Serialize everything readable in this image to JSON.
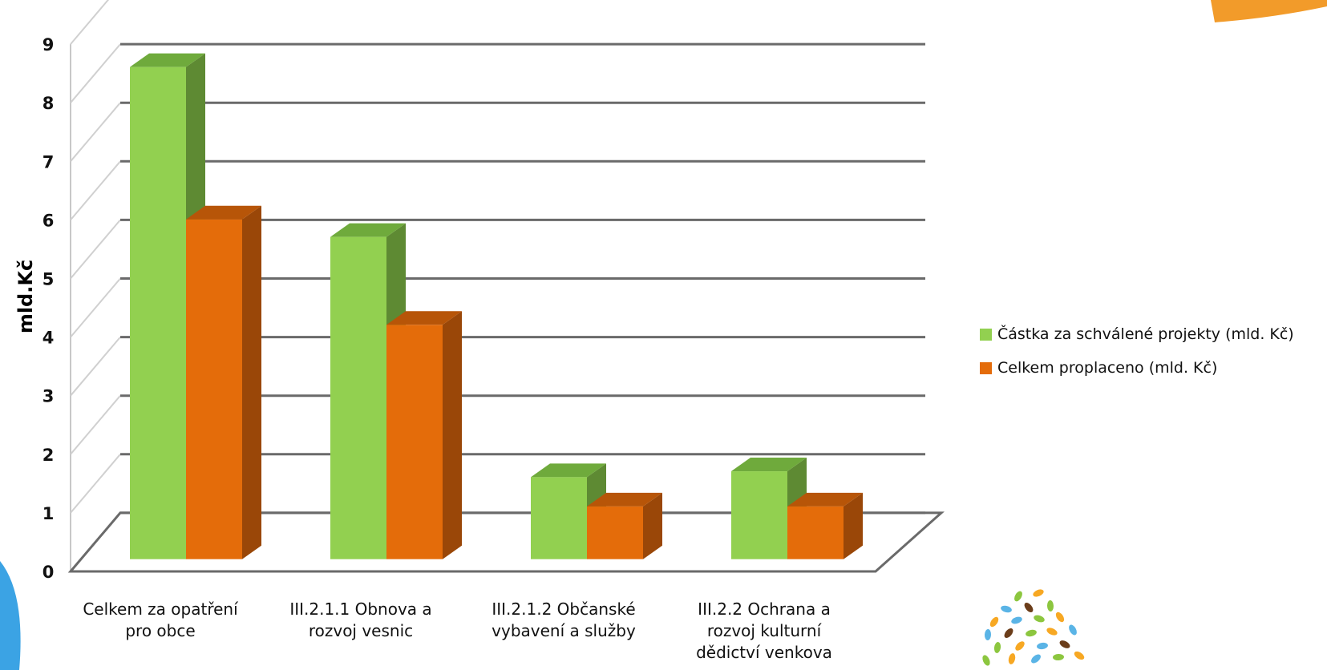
{
  "chart_data": {
    "type": "bar",
    "categories": [
      [
        "Celkem za opatření",
        "pro obce"
      ],
      [
        "III.2.1.1 Obnova a",
        "rozvoj vesnic"
      ],
      [
        "III.2.1.2  Občanské",
        "vybavení a služby"
      ],
      [
        "III.2.2 Ochrana a",
        "rozvoj kulturní",
        "dědictví venkova"
      ]
    ],
    "series": [
      {
        "name": "Částka za schválené projekty  (mld. Kč)",
        "values": [
          8.4,
          5.5,
          1.4,
          1.5
        ],
        "color": "#92d050"
      },
      {
        "name": "Celkem proplaceno (mld. Kč)",
        "values": [
          5.8,
          4.0,
          0.9,
          0.9
        ],
        "color": "#e46c0a"
      }
    ],
    "ylabel": "mld.Kč",
    "xlabel": "",
    "title": "",
    "ylim": [
      0,
      9
    ],
    "yticks": [
      "0",
      "1",
      "2",
      "3",
      "4",
      "5",
      "6",
      "7",
      "8",
      "9"
    ],
    "grid": true,
    "legend_position": "right",
    "style": "3d-clustered-column"
  },
  "colors": {
    "green_side": "#5e8a33",
    "green_top": "#6faa3c",
    "orange_side": "#9a4708",
    "orange_top": "#b75508",
    "gridline": "#6a6a6a",
    "decor_orange": "#f29b2a",
    "decor_blue": "#3ba3e4"
  },
  "decor": {
    "logo": "tree-logo-icon"
  }
}
